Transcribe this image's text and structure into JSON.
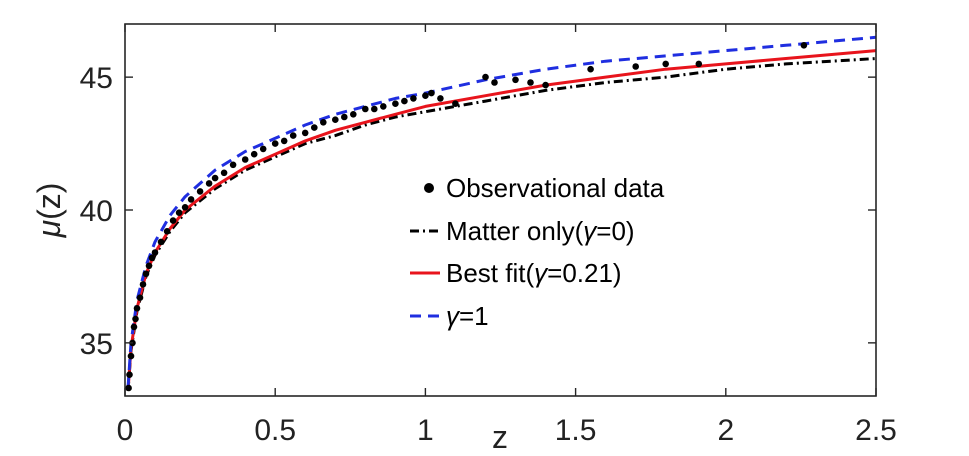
{
  "chart_data": {
    "type": "scatter",
    "title": "",
    "xlabel": "z",
    "ylabel_symbol": "μ",
    "ylabel_suffix": "(z)",
    "xlim": [
      0,
      2.5
    ],
    "ylim": [
      33,
      47
    ],
    "xticks": [
      0,
      0.5,
      1,
      1.5,
      2,
      2.5
    ],
    "xtick_labels": [
      "0",
      "0.5",
      "1",
      "1.5",
      "2",
      "2.5"
    ],
    "yticks": [
      35,
      40,
      45
    ],
    "ytick_labels": [
      "35",
      "40",
      "45"
    ],
    "grid": false,
    "legend_position": "center-right",
    "observations": {
      "name": "Observational data",
      "color": "#000000",
      "points": [
        [
          0.012,
          33.3
        ],
        [
          0.015,
          33.8
        ],
        [
          0.02,
          34.5
        ],
        [
          0.025,
          35.0
        ],
        [
          0.03,
          35.6
        ],
        [
          0.035,
          35.9
        ],
        [
          0.04,
          36.3
        ],
        [
          0.05,
          36.7
        ],
        [
          0.06,
          37.2
        ],
        [
          0.07,
          37.6
        ],
        [
          0.08,
          37.9
        ],
        [
          0.09,
          38.2
        ],
        [
          0.1,
          38.4
        ],
        [
          0.12,
          38.8
        ],
        [
          0.14,
          39.2
        ],
        [
          0.16,
          39.6
        ],
        [
          0.18,
          39.9
        ],
        [
          0.2,
          40.1
        ],
        [
          0.22,
          40.4
        ],
        [
          0.25,
          40.7
        ],
        [
          0.28,
          41.0
        ],
        [
          0.3,
          41.2
        ],
        [
          0.33,
          41.4
        ],
        [
          0.36,
          41.7
        ],
        [
          0.4,
          41.9
        ],
        [
          0.43,
          42.1
        ],
        [
          0.46,
          42.3
        ],
        [
          0.5,
          42.5
        ],
        [
          0.53,
          42.6
        ],
        [
          0.56,
          42.8
        ],
        [
          0.6,
          42.9
        ],
        [
          0.63,
          43.1
        ],
        [
          0.66,
          43.3
        ],
        [
          0.7,
          43.4
        ],
        [
          0.73,
          43.5
        ],
        [
          0.76,
          43.6
        ],
        [
          0.8,
          43.8
        ],
        [
          0.83,
          43.8
        ],
        [
          0.86,
          43.9
        ],
        [
          0.9,
          44.0
        ],
        [
          0.93,
          44.1
        ],
        [
          0.96,
          44.2
        ],
        [
          1.0,
          44.3
        ],
        [
          1.02,
          44.4
        ],
        [
          1.05,
          44.2
        ],
        [
          1.1,
          44.0
        ],
        [
          1.2,
          45.0
        ],
        [
          1.23,
          44.8
        ],
        [
          1.3,
          44.9
        ],
        [
          1.35,
          44.8
        ],
        [
          1.4,
          44.7
        ],
        [
          1.55,
          45.3
        ],
        [
          1.7,
          45.4
        ],
        [
          1.8,
          45.5
        ],
        [
          1.91,
          45.5
        ],
        [
          2.26,
          46.2
        ]
      ]
    },
    "series": [
      {
        "name": "Matter only(γ=0)",
        "legend_prefix": "Matter only(",
        "legend_symbol": "γ",
        "legend_suffix": "=0)",
        "color": "#000000",
        "style": "dash-dot",
        "x": [
          0.01,
          0.02,
          0.04,
          0.07,
          0.1,
          0.15,
          0.2,
          0.3,
          0.4,
          0.5,
          0.6,
          0.7,
          0.8,
          0.9,
          1.0,
          1.2,
          1.4,
          1.6,
          1.8,
          2.0,
          2.2,
          2.5
        ],
        "values": [
          33.2,
          34.7,
          36.2,
          37.5,
          38.3,
          39.2,
          39.9,
          40.8,
          41.5,
          42.0,
          42.5,
          42.8,
          43.2,
          43.5,
          43.7,
          44.1,
          44.5,
          44.8,
          45.0,
          45.3,
          45.5,
          45.7
        ]
      },
      {
        "name": "Best fit(γ=0.21)",
        "legend_prefix": "Best fit(",
        "legend_symbol": "γ",
        "legend_suffix": "=0.21)",
        "color": "#e8141c",
        "style": "solid",
        "x": [
          0.01,
          0.02,
          0.04,
          0.07,
          0.1,
          0.15,
          0.2,
          0.3,
          0.4,
          0.5,
          0.6,
          0.7,
          0.8,
          0.9,
          1.0,
          1.2,
          1.4,
          1.6,
          1.8,
          2.0,
          2.2,
          2.5
        ],
        "values": [
          33.2,
          34.8,
          36.3,
          37.6,
          38.4,
          39.3,
          40.0,
          40.9,
          41.6,
          42.1,
          42.6,
          43.0,
          43.3,
          43.6,
          43.9,
          44.3,
          44.7,
          45.0,
          45.3,
          45.5,
          45.7,
          46.0
        ]
      },
      {
        "name": "γ=1",
        "legend_prefix": "",
        "legend_symbol": "γ",
        "legend_suffix": "=1",
        "color": "#1f2ee0",
        "style": "dashed",
        "x": [
          0.01,
          0.02,
          0.04,
          0.07,
          0.1,
          0.15,
          0.2,
          0.3,
          0.4,
          0.5,
          0.6,
          0.7,
          0.8,
          0.9,
          1.0,
          1.2,
          1.4,
          1.6,
          1.8,
          2.0,
          2.2,
          2.5
        ],
        "values": [
          33.3,
          35.0,
          36.6,
          37.9,
          38.8,
          39.8,
          40.5,
          41.5,
          42.2,
          42.7,
          43.2,
          43.6,
          43.9,
          44.2,
          44.4,
          44.9,
          45.3,
          45.6,
          45.8,
          46.0,
          46.2,
          46.5
        ]
      }
    ]
  }
}
